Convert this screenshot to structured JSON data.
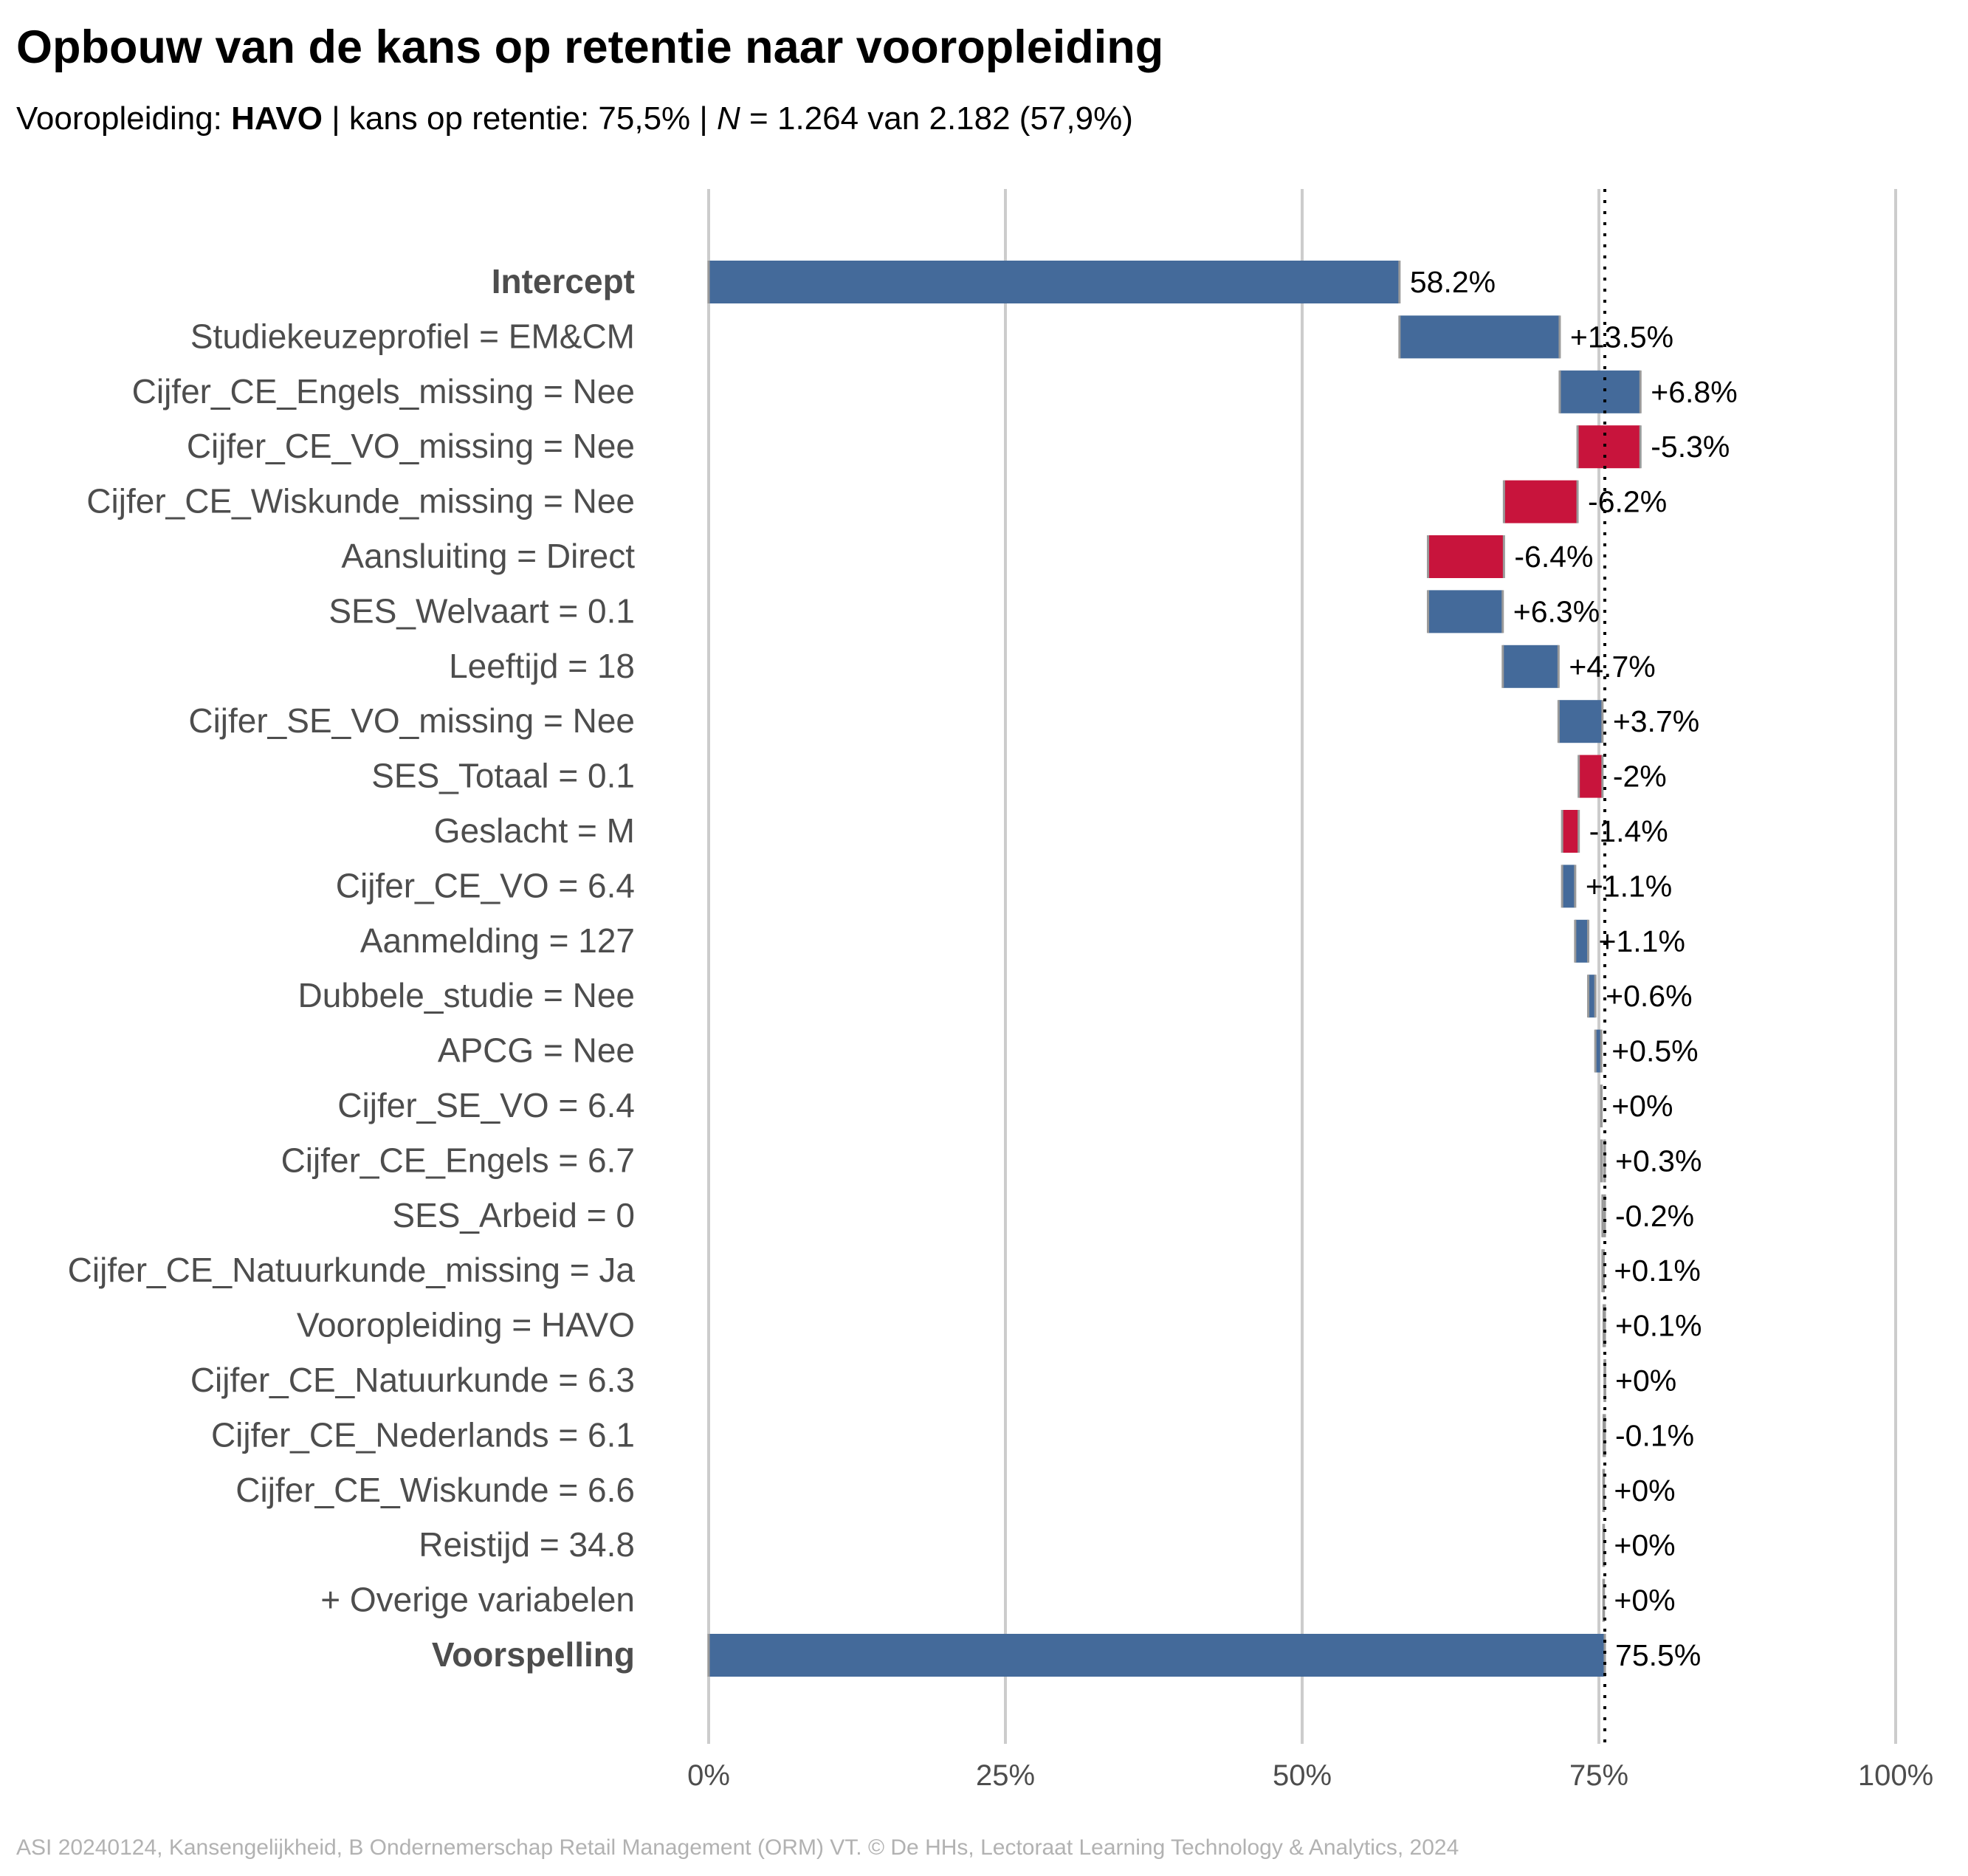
{
  "title": "Opbouw van de kans op retentie naar vooropleiding",
  "subtitle": {
    "prefix": "Vooropleiding: ",
    "group": "HAVO",
    "middle": " | kans op retentie: 75,5% | ",
    "n_symbol": "N",
    "suffix": " = 1.264 van 2.182 (57,9%)"
  },
  "caption": "ASI 20240124, Kansengelijkheid, B Ondernemerschap Retail Management (ORM) VT. © De HHs, Lectoraat Learning Technology & Analytics, 2024",
  "colors": {
    "positive": "#446a9a",
    "negative": "#c8143c",
    "negligible": "#c0c0c0",
    "grid": "#cccccc",
    "reference_line": "#000000"
  },
  "chart_data": {
    "type": "waterfall",
    "xlim": [
      0,
      100
    ],
    "x_ticks": [
      0,
      25,
      50,
      75,
      100
    ],
    "x_tick_labels": [
      "0%",
      "25%",
      "50%",
      "75%",
      "100%"
    ],
    "reference_line": 75.5,
    "grid": true,
    "items": [
      {
        "label": "Intercept",
        "value": 58.2,
        "value_label": "58.2%",
        "kind": "total"
      },
      {
        "label": "Studiekeuzeprofiel = EM&CM",
        "value": 13.5,
        "value_label": "+13.5%"
      },
      {
        "label": "Cijfer_CE_Engels_missing = Nee",
        "value": 6.8,
        "value_label": "+6.8%"
      },
      {
        "label": "Cijfer_CE_VO_missing = Nee",
        "value": -5.3,
        "value_label": "-5.3%"
      },
      {
        "label": "Cijfer_CE_Wiskunde_missing = Nee",
        "value": -6.2,
        "value_label": "-6.2%"
      },
      {
        "label": "Aansluiting = Direct",
        "value": -6.4,
        "value_label": "-6.4%"
      },
      {
        "label": "SES_Welvaart = 0.1",
        "value": 6.3,
        "value_label": "+6.3%"
      },
      {
        "label": "Leeftijd = 18",
        "value": 4.7,
        "value_label": "+4.7%"
      },
      {
        "label": "Cijfer_SE_VO_missing = Nee",
        "value": 3.7,
        "value_label": "+3.7%"
      },
      {
        "label": "SES_Totaal = 0.1",
        "value": -2.0,
        "value_label": "-2%"
      },
      {
        "label": "Geslacht = M",
        "value": -1.4,
        "value_label": "-1.4%"
      },
      {
        "label": "Cijfer_CE_VO = 6.4",
        "value": 1.1,
        "value_label": "+1.1%"
      },
      {
        "label": "Aanmelding = 127",
        "value": 1.1,
        "value_label": "+1.1%"
      },
      {
        "label": "Dubbele_studie = Nee",
        "value": 0.6,
        "value_label": "+0.6%"
      },
      {
        "label": "APCG = Nee",
        "value": 0.5,
        "value_label": "+0.5%"
      },
      {
        "label": "Cijfer_SE_VO = 6.4",
        "value": 0.0,
        "value_label": "+0%"
      },
      {
        "label": "Cijfer_CE_Engels = 6.7",
        "value": 0.3,
        "value_label": "+0.3%"
      },
      {
        "label": "SES_Arbeid = 0",
        "value": -0.2,
        "value_label": "-0.2%"
      },
      {
        "label": "Cijfer_CE_Natuurkunde_missing = Ja",
        "value": 0.1,
        "value_label": "+0.1%"
      },
      {
        "label": "Vooropleiding = HAVO",
        "value": 0.1,
        "value_label": "+0.1%"
      },
      {
        "label": "Cijfer_CE_Natuurkunde = 6.3",
        "value": 0.0,
        "value_label": "+0%"
      },
      {
        "label": "Cijfer_CE_Nederlands = 6.1",
        "value": -0.1,
        "value_label": "-0.1%"
      },
      {
        "label": "Cijfer_CE_Wiskunde = 6.6",
        "value": 0.0,
        "value_label": "+0%"
      },
      {
        "label": "Reistijd = 34.8",
        "value": 0.0,
        "value_label": "+0%"
      },
      {
        "label": "+ Overige variabelen",
        "value": 0.0,
        "value_label": "+0%"
      },
      {
        "label": "Voorspelling",
        "value": 75.5,
        "value_label": "75.5%",
        "kind": "total"
      }
    ]
  }
}
